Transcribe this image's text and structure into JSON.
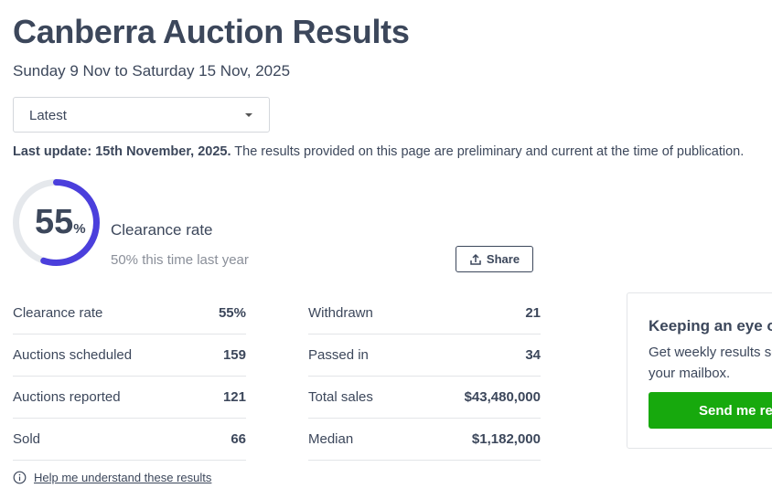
{
  "title": "Canberra Auction Results",
  "date_range": "Sunday 9 Nov to Saturday 15 Nov, 2025",
  "period_select": {
    "value": "Latest"
  },
  "update": {
    "label": "Last update: 15th November, 2025.",
    "text": " The results provided on this page are preliminary and current at the time of publication."
  },
  "clearance": {
    "value": "55",
    "unit": "%",
    "percent": 55,
    "label": "Clearance rate",
    "last_year": "50% this time last year",
    "ring_color": "#4b3fdc",
    "track_color": "#e5e8ec"
  },
  "share_label": "Share",
  "stats_left": [
    {
      "label": "Clearance rate",
      "value": "55%"
    },
    {
      "label": "Auctions scheduled",
      "value": "159"
    },
    {
      "label": "Auctions reported",
      "value": "121"
    },
    {
      "label": "Sold",
      "value": "66"
    }
  ],
  "stats_right": [
    {
      "label": "Withdrawn",
      "value": "21"
    },
    {
      "label": "Passed in",
      "value": "34"
    },
    {
      "label": "Total sales",
      "value": "$43,480,000"
    },
    {
      "label": "Median",
      "value": "$1,182,000"
    }
  ],
  "promo": {
    "heading": "Keeping an eye on",
    "line1": "Get weekly results sent to",
    "line2": "your mailbox.",
    "button": "Send me results",
    "button_color": "#17a90d"
  },
  "help_link": "Help me understand these results"
}
